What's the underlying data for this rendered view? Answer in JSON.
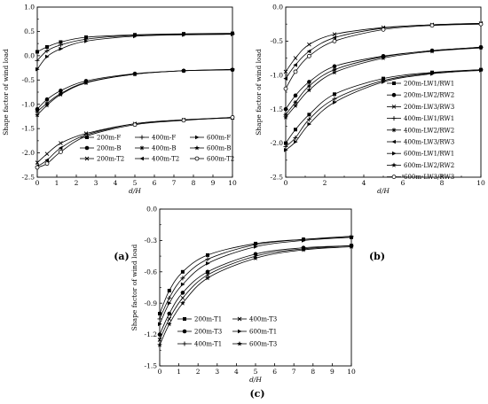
{
  "chart_data": [
    {
      "type": "line",
      "panel_label": "(a)",
      "xlabel": "d/H",
      "ylabel": "Shape factor of wind load",
      "xlim": [
        0,
        10
      ],
      "ylim": [
        -2.5,
        1.0
      ],
      "x_ticks": [
        0,
        1,
        2,
        3,
        4,
        5,
        6,
        7,
        8,
        9,
        10
      ],
      "y_ticks": [
        1.0,
        0.5,
        0.0,
        -0.5,
        -1.0,
        -1.5,
        -2.0,
        -2.5
      ],
      "y_tick_labels": [
        "1.0",
        "0.5",
        "0.0",
        "-0.5",
        "-1.0",
        "-1.5",
        "-2.0",
        "-2.5"
      ],
      "legend_position": "bottom-right",
      "legend_columns": 3,
      "series": [
        {
          "name": "200m-F",
          "marker": "square",
          "x": [
            0,
            0.5,
            1.2,
            2.5,
            5,
            7.5,
            10
          ],
          "y": [
            0.08,
            0.18,
            0.28,
            0.38,
            0.43,
            0.45,
            0.46
          ]
        },
        {
          "name": "200m-B",
          "marker": "circle",
          "x": [
            0,
            0.5,
            1.2,
            2.5,
            5,
            7.5,
            10
          ],
          "y": [
            -1.1,
            -0.9,
            -0.72,
            -0.52,
            -0.37,
            -0.31,
            -0.29
          ]
        },
        {
          "name": "200m-T2",
          "marker": "x",
          "x": [
            0,
            0.5,
            1.2,
            2.5,
            5,
            7.5,
            10
          ],
          "y": [
            -2.2,
            -2.02,
            -1.8,
            -1.6,
            -1.4,
            -1.32,
            -1.28
          ]
        },
        {
          "name": "400m-F",
          "marker": "plus",
          "x": [
            0,
            0.5,
            1.2,
            2.5,
            5,
            7.5,
            10
          ],
          "y": [
            -0.1,
            0.1,
            0.22,
            0.34,
            0.42,
            0.44,
            0.45
          ]
        },
        {
          "name": "400m-B",
          "marker": "asterisk",
          "x": [
            0,
            0.5,
            1.2,
            2.5,
            5,
            7.5,
            10
          ],
          "y": [
            -1.15,
            -0.98,
            -0.78,
            -0.55,
            -0.38,
            -0.31,
            -0.29
          ]
        },
        {
          "name": "400m-T2",
          "marker": "triangle-left",
          "x": [
            0,
            0.5,
            1.2,
            2.5,
            5,
            7.5,
            10
          ],
          "y": [
            -2.28,
            -2.15,
            -1.9,
            -1.63,
            -1.4,
            -1.32,
            -1.27
          ]
        },
        {
          "name": "600m-F",
          "marker": "triangle-right",
          "x": [
            0,
            0.5,
            1.2,
            2.5,
            5,
            7.5,
            10
          ],
          "y": [
            -0.28,
            -0.02,
            0.14,
            0.3,
            0.4,
            0.43,
            0.44
          ]
        },
        {
          "name": "600m-B",
          "marker": "star",
          "x": [
            0,
            0.5,
            1.2,
            2.5,
            5,
            7.5,
            10
          ],
          "y": [
            -1.22,
            -1.02,
            -0.8,
            -0.56,
            -0.38,
            -0.31,
            -0.28
          ]
        },
        {
          "name": "600m-T2",
          "marker": "circle-open",
          "x": [
            0,
            0.5,
            1.2,
            2.5,
            5,
            7.5,
            10
          ],
          "y": [
            -2.3,
            -2.22,
            -1.98,
            -1.66,
            -1.42,
            -1.33,
            -1.27
          ]
        }
      ]
    },
    {
      "type": "line",
      "panel_label": "(b)",
      "xlabel": "d/H",
      "ylabel": "Shape factor of wind load",
      "xlim": [
        0,
        10
      ],
      "ylim": [
        -2.5,
        0.0
      ],
      "x_ticks": [
        0,
        2,
        4,
        6,
        8,
        10
      ],
      "y_ticks": [
        0.0,
        -0.5,
        -1.0,
        -1.5,
        -2.0,
        -2.5
      ],
      "y_tick_labels": [
        "0.0",
        "-0.5",
        "-1.0",
        "-1.5",
        "-2.0",
        "-2.5"
      ],
      "legend_position": "right",
      "legend_columns": 1,
      "series": [
        {
          "name": "200m-LW1/RW1",
          "marker": "square",
          "x": [
            0,
            0.5,
            1.2,
            2.5,
            5,
            7.5,
            10
          ],
          "y": [
            -2.0,
            -1.8,
            -1.58,
            -1.28,
            -1.05,
            -0.96,
            -0.92
          ]
        },
        {
          "name": "200m-LW2/RW2",
          "marker": "circle",
          "x": [
            0,
            0.5,
            1.2,
            2.5,
            5,
            7.5,
            10
          ],
          "y": [
            -1.5,
            -1.3,
            -1.1,
            -0.87,
            -0.72,
            -0.64,
            -0.59
          ]
        },
        {
          "name": "200m-LW3/RW3",
          "marker": "x",
          "x": [
            0,
            0.5,
            1.2,
            2.5,
            5,
            7.5,
            10
          ],
          "y": [
            -0.95,
            -0.75,
            -0.55,
            -0.4,
            -0.3,
            -0.26,
            -0.24
          ]
        },
        {
          "name": "400m-LW1/RW1",
          "marker": "plus",
          "x": [
            0,
            0.5,
            1.2,
            2.5,
            5,
            7.5,
            10
          ],
          "y": [
            -2.05,
            -1.92,
            -1.65,
            -1.35,
            -1.08,
            -0.97,
            -0.92
          ]
        },
        {
          "name": "400m-LW2/RW2",
          "marker": "asterisk",
          "x": [
            0,
            0.5,
            1.2,
            2.5,
            5,
            7.5,
            10
          ],
          "y": [
            -1.58,
            -1.4,
            -1.16,
            -0.92,
            -0.73,
            -0.64,
            -0.59
          ]
        },
        {
          "name": "400m-LW3/RW3",
          "marker": "triangle-left",
          "x": [
            0,
            0.5,
            1.2,
            2.5,
            5,
            7.5,
            10
          ],
          "y": [
            -1.05,
            -0.85,
            -0.65,
            -0.45,
            -0.31,
            -0.26,
            -0.24
          ]
        },
        {
          "name": "600m-LW1/RW1",
          "marker": "triangle-right",
          "x": [
            0,
            0.5,
            1.2,
            2.5,
            5,
            7.5,
            10
          ],
          "y": [
            -2.1,
            -1.98,
            -1.72,
            -1.4,
            -1.1,
            -0.98,
            -0.93
          ]
        },
        {
          "name": "600m-LW2/RW2",
          "marker": "star",
          "x": [
            0,
            0.5,
            1.2,
            2.5,
            5,
            7.5,
            10
          ],
          "y": [
            -1.62,
            -1.45,
            -1.22,
            -0.96,
            -0.75,
            -0.65,
            -0.6
          ]
        },
        {
          "name": "600m-LW3/RW3",
          "marker": "circle-open",
          "x": [
            0,
            0.5,
            1.2,
            2.5,
            5,
            7.5,
            10
          ],
          "y": [
            -1.2,
            -0.95,
            -0.72,
            -0.5,
            -0.33,
            -0.27,
            -0.25
          ]
        }
      ]
    },
    {
      "type": "line",
      "panel_label": "(c)",
      "xlabel": "d/H",
      "ylabel": "Shape factor of wind load",
      "xlim": [
        0,
        10
      ],
      "ylim": [
        -1.5,
        0.0
      ],
      "x_ticks": [
        0,
        1,
        2,
        3,
        4,
        5,
        6,
        7,
        8,
        9,
        10
      ],
      "y_ticks": [
        0.0,
        -0.3,
        -0.6,
        -0.9,
        -1.2,
        -1.5
      ],
      "y_tick_labels": [
        "0.0",
        "-0.3",
        "-0.6",
        "-0.9",
        "-1.2",
        "-1.5"
      ],
      "legend_position": "bottom-right",
      "legend_columns": 3,
      "series": [
        {
          "name": "200m-T1",
          "marker": "square",
          "x": [
            0,
            0.5,
            1.2,
            2.5,
            5,
            7.5,
            10
          ],
          "y": [
            -1.0,
            -0.78,
            -0.6,
            -0.44,
            -0.33,
            -0.29,
            -0.27
          ]
        },
        {
          "name": "200m-T3",
          "marker": "circle",
          "x": [
            0,
            0.5,
            1.2,
            2.5,
            5,
            7.5,
            10
          ],
          "y": [
            -1.2,
            -1.0,
            -0.8,
            -0.6,
            -0.43,
            -0.37,
            -0.35
          ]
        },
        {
          "name": "400m-T1",
          "marker": "plus",
          "x": [
            0,
            0.5,
            1.2,
            2.5,
            5,
            7.5,
            10
          ],
          "y": [
            -1.05,
            -0.85,
            -0.66,
            -0.48,
            -0.34,
            -0.29,
            -0.26
          ]
        },
        {
          "name": "400m-T3",
          "marker": "x",
          "x": [
            0,
            0.5,
            1.2,
            2.5,
            5,
            7.5,
            10
          ],
          "y": [
            -1.25,
            -1.05,
            -0.85,
            -0.63,
            -0.45,
            -0.38,
            -0.35
          ]
        },
        {
          "name": "600m-T1",
          "marker": "triangle-right",
          "x": [
            0,
            0.5,
            1.2,
            2.5,
            5,
            7.5,
            10
          ],
          "y": [
            -1.1,
            -0.9,
            -0.72,
            -0.52,
            -0.36,
            -0.3,
            -0.27
          ]
        },
        {
          "name": "600m-T3",
          "marker": "star",
          "x": [
            0,
            0.5,
            1.2,
            2.5,
            5,
            7.5,
            10
          ],
          "y": [
            -1.3,
            -1.1,
            -0.9,
            -0.66,
            -0.47,
            -0.39,
            -0.36
          ]
        }
      ]
    }
  ]
}
